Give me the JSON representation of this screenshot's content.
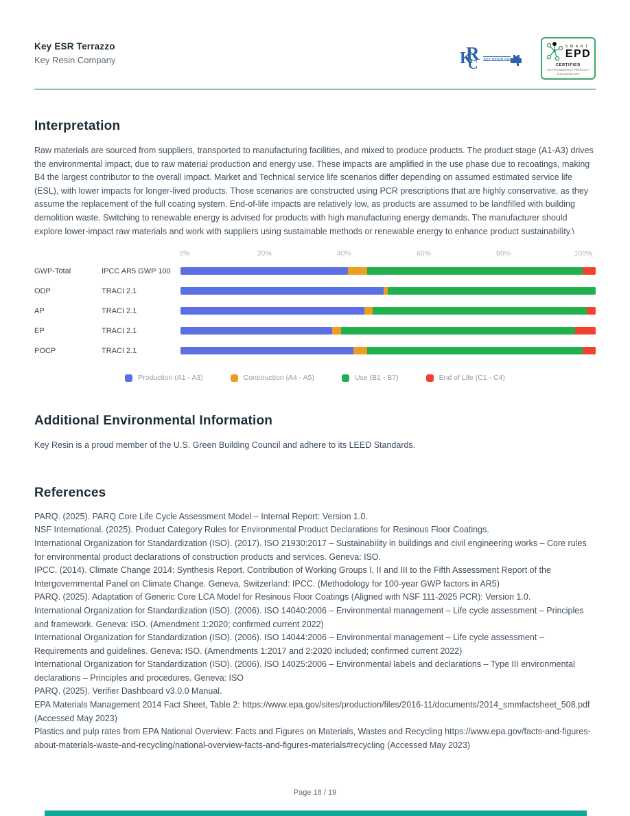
{
  "header": {
    "product": "Key ESR Terrazzo",
    "company": "Key Resin Company",
    "krc_logo": {
      "monogram": "KRC",
      "label": "KEY RESIN COMPANY"
    },
    "epd_badge": {
      "smart": "SMART",
      "epd": "EPD",
      "certified": "CERTIFIED",
      "line1": "ENVIRONMENTAL PRODUCT",
      "line2": "DECLARATION"
    }
  },
  "interpretation": {
    "title": "Interpretation",
    "body": "Raw materials are sourced from suppliers, transported to manufacturing facilities, and mixed to produce products. The product stage (A1-A3) drives the environmental impact, due to raw material production and energy use. These impacts are amplified in the use phase due to recoatings, making B4 the largest contributor to the overall impact. Market and Technical service life scenarios differ depending on assumed estimated service life (ESL), with lower impacts for longer-lived products. Those scenarios are constructed using PCR prescriptions that are highly conservative, as they assume the replacement of the full coating system. End-of-life impacts are relatively low, as products are assumed to be landfilled with building demolition waste. Switching to renewable energy is advised for products with high manufacturing energy demands. The manufacturer should explore lower-impact raw materials and work with suppliers using sustainable methods or renewable energy to enhance product sustainability.\\"
  },
  "chart_data": {
    "type": "bar",
    "orientation": "horizontal",
    "stacked": true,
    "unit": "%",
    "title": "",
    "xlabel": "",
    "ylabel": "",
    "xlim": [
      0,
      100
    ],
    "grid": false,
    "legend_position": "bottom",
    "x_ticks": [
      "0%",
      "20%",
      "40%",
      "60%",
      "80%",
      "100%"
    ],
    "categories": [
      "GWP-Total",
      "ODP",
      "AP",
      "EP",
      "POCP"
    ],
    "methods": [
      "IPCC AR5 GWP 100",
      "TRACI 2.1",
      "TRACI 2.1",
      "TRACI 2.1",
      "TRACI 2.1"
    ],
    "series": [
      {
        "name": "Production (A1 - A3)",
        "color": "#5b70e2",
        "values": [
          40.4,
          49.0,
          44.3,
          36.6,
          41.7
        ]
      },
      {
        "name": "Construction (A4 - A5)",
        "color": "#ef9d20",
        "values": [
          4.6,
          1.0,
          2.0,
          2.0,
          3.3
        ]
      },
      {
        "name": "Use (B1 - B7)",
        "color": "#21b04e",
        "values": [
          51.9,
          50.0,
          51.6,
          56.5,
          51.9
        ]
      },
      {
        "name": "End of Life (C1 - C4)",
        "color": "#f4402f",
        "values": [
          3.1,
          0.0,
          2.1,
          4.9,
          3.1
        ]
      }
    ]
  },
  "additional": {
    "title": "Additional Environmental Information",
    "body": "Key Resin is a proud member of the U.S. Green Building Council and adhere to its LEED Standards."
  },
  "references": {
    "title": "References",
    "items": [
      "PARQ. (2025). PARQ Core Life Cycle Assessment Model – Internal Report: Version 1.0.",
      "NSF International. (2025). Product Category Rules for Environmental Product Declarations for Resinous Floor Coatings.",
      "International Organization for Standardization (ISO). (2017). ISO 21930:2017 – Sustainability in buildings and civil engineering works – Core rules for environmental product declarations of construction products and services. Geneva: ISO.",
      "IPCC. (2014). Climate Change 2014: Synthesis Report. Contribution of Working Groups I, II and III to the Fifth Assessment Report of the Intergovernmental Panel on Climate Change. Geneva, Switzerland: IPCC. (Methodology for 100-year GWP factors in AR5)",
      "PARQ. (2025). Adaptation of Generic Core LCA Model for Resinous Floor Coatings (Aligned with NSF 111-2025 PCR): Version 1.0.",
      "International Organization for Standardization (ISO). (2006). ISO 14040:2006 – Environmental management – Life cycle assessment – Principles and framework. Geneva: ISO. (Amendment 1:2020; confirmed current 2022)",
      "International Organization for Standardization (ISO). (2006). ISO 14044:2006 – Environmental management – Life cycle assessment – Requirements and guidelines. Geneva: ISO. (Amendments 1:2017 and 2:2020 included; confirmed current 2022)",
      "International Organization for Standardization (ISO). (2006). ISO 14025:2006 – Environmental labels and declarations – Type III environmental declarations – Principles and procedures. Geneva: ISO",
      "PARQ. (2025). Verifier Dashboard v3.0.0 Manual.",
      "EPA Materials Management 2014 Fact Sheet, Table 2: https://www.epa.gov/sites/production/files/2016-11/documents/2014_smmfactsheet_508.pdf (Accessed May 2023)",
      "Plastics and pulp rates from EPA National Overview: Facts and Figures on Materials, Wastes and Recycling https://www.epa.gov/facts-and-figures-about-materials-waste-and-recycling/national-overview-facts-and-figures-materials#recycling (Accessed May 2023)"
    ]
  },
  "footer": {
    "page": "Page 18 / 19"
  },
  "colors": {
    "header_rule": "#7dcfa0",
    "bottom_bar": "#0ea89a",
    "heading": "#1e2b33",
    "body_text": "#3f4e5c",
    "axis_tick": "#a9b4c2",
    "legend_text": "#8e9ba9",
    "krc_blue": "#2e62ad",
    "epd_green": "#3aa569"
  }
}
